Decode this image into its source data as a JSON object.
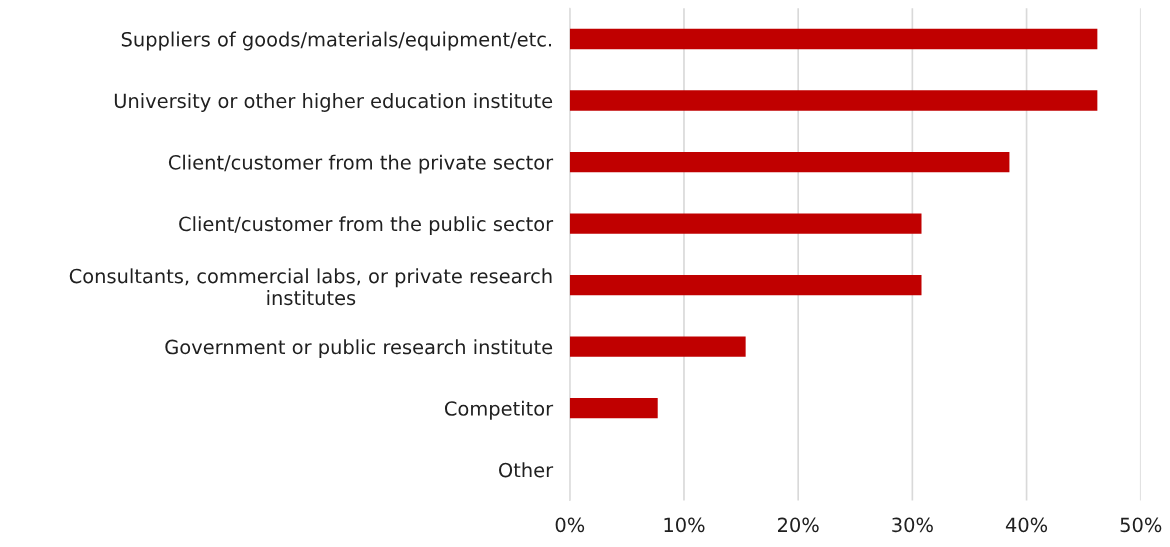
{
  "chart_data": {
    "type": "bar",
    "orientation": "horizontal",
    "categories": [
      "Suppliers of goods/materials/equipment/etc.",
      "University or other higher education institute",
      "Client/customer from the private sector",
      "Client/customer from the public sector",
      "Consultants, commercial labs, or private research\ninstitutes",
      "Government or public research institute",
      "Competitor",
      "Other"
    ],
    "values": [
      46.2,
      46.2,
      38.5,
      30.8,
      30.8,
      15.4,
      7.7,
      0
    ],
    "color": "#c00000",
    "xlim": [
      0,
      50
    ],
    "xticks": [
      {
        "value": 0,
        "label": "0%"
      },
      {
        "value": 10,
        "label": "10%"
      },
      {
        "value": 20,
        "label": "20%"
      },
      {
        "value": 30,
        "label": "30%"
      },
      {
        "value": 40,
        "label": "40%"
      },
      {
        "value": 50,
        "label": "50%"
      }
    ],
    "grid": "x"
  }
}
